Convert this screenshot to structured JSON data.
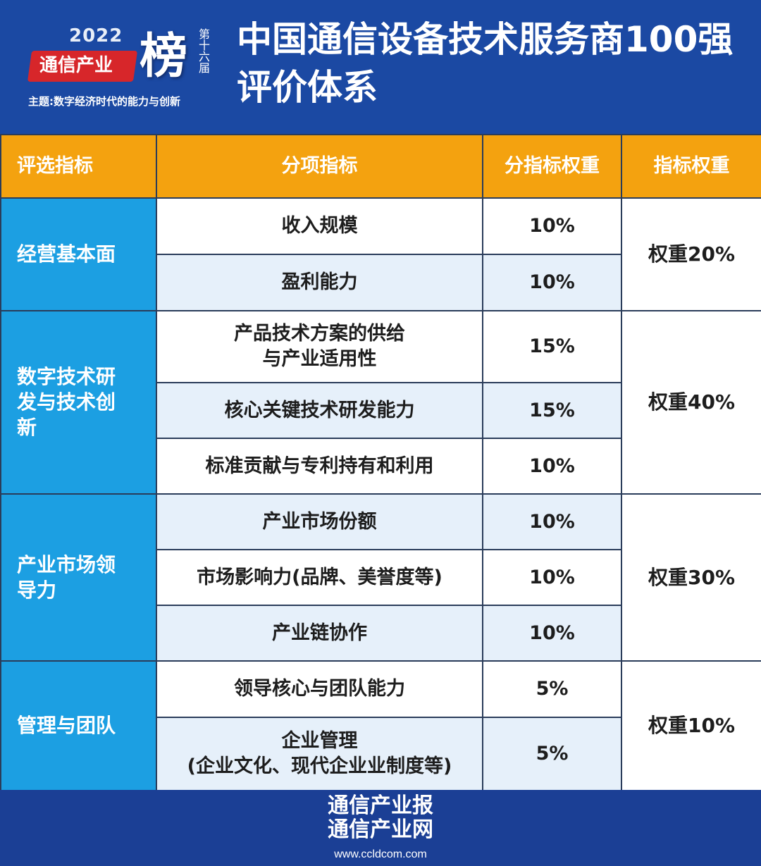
{
  "header": {
    "logo": {
      "year": "2022",
      "brand": "通信产业",
      "bang": "榜",
      "edition": "第十六届",
      "theme": "主题:数字经济时代的能力与创新"
    },
    "title_line1": "中国通信设备技术服务商100强",
    "title_line2": "评价体系"
  },
  "table": {
    "columns": [
      "评选指标",
      "分项指标",
      "分指标权重",
      "指标权重"
    ],
    "groups": [
      {
        "category": "经营基本面",
        "weight": "权重20%",
        "items": [
          {
            "name": "收入规模",
            "weight": "10%"
          },
          {
            "name": "盈利能力",
            "weight": "10%"
          }
        ]
      },
      {
        "category": "数字技术研发与技术创新",
        "weight": "权重40%",
        "items": [
          {
            "name": "产品技术方案的供给\n与产业适用性",
            "weight": "15%"
          },
          {
            "name": "核心关键技术研发能力",
            "weight": "15%"
          },
          {
            "name": "标准贡献与专利持有和利用",
            "weight": "10%"
          }
        ]
      },
      {
        "category": "产业市场领导力",
        "weight": "权重30%",
        "items": [
          {
            "name": "产业市场份额",
            "weight": "10%"
          },
          {
            "name": "市场影响力(品牌、美誉度等)",
            "weight": "10%"
          },
          {
            "name": "产业链协作",
            "weight": "10%"
          }
        ]
      },
      {
        "category": "管理与团队",
        "weight": "权重10%",
        "items": [
          {
            "name": "领导核心与团队能力",
            "weight": "5%"
          },
          {
            "name": "企业管理\n(企业文化、现代企业业制度等)",
            "weight": "5%"
          }
        ]
      }
    ]
  },
  "footer": {
    "line1": "通信产业报",
    "line2": "通信产业网",
    "url": "www.ccldcom.com"
  },
  "colors": {
    "header_blue": "#1b49a3",
    "orange": "#f4a20f",
    "category_blue": "#1c9fe2",
    "row_alt": "#e6f0fa"
  }
}
